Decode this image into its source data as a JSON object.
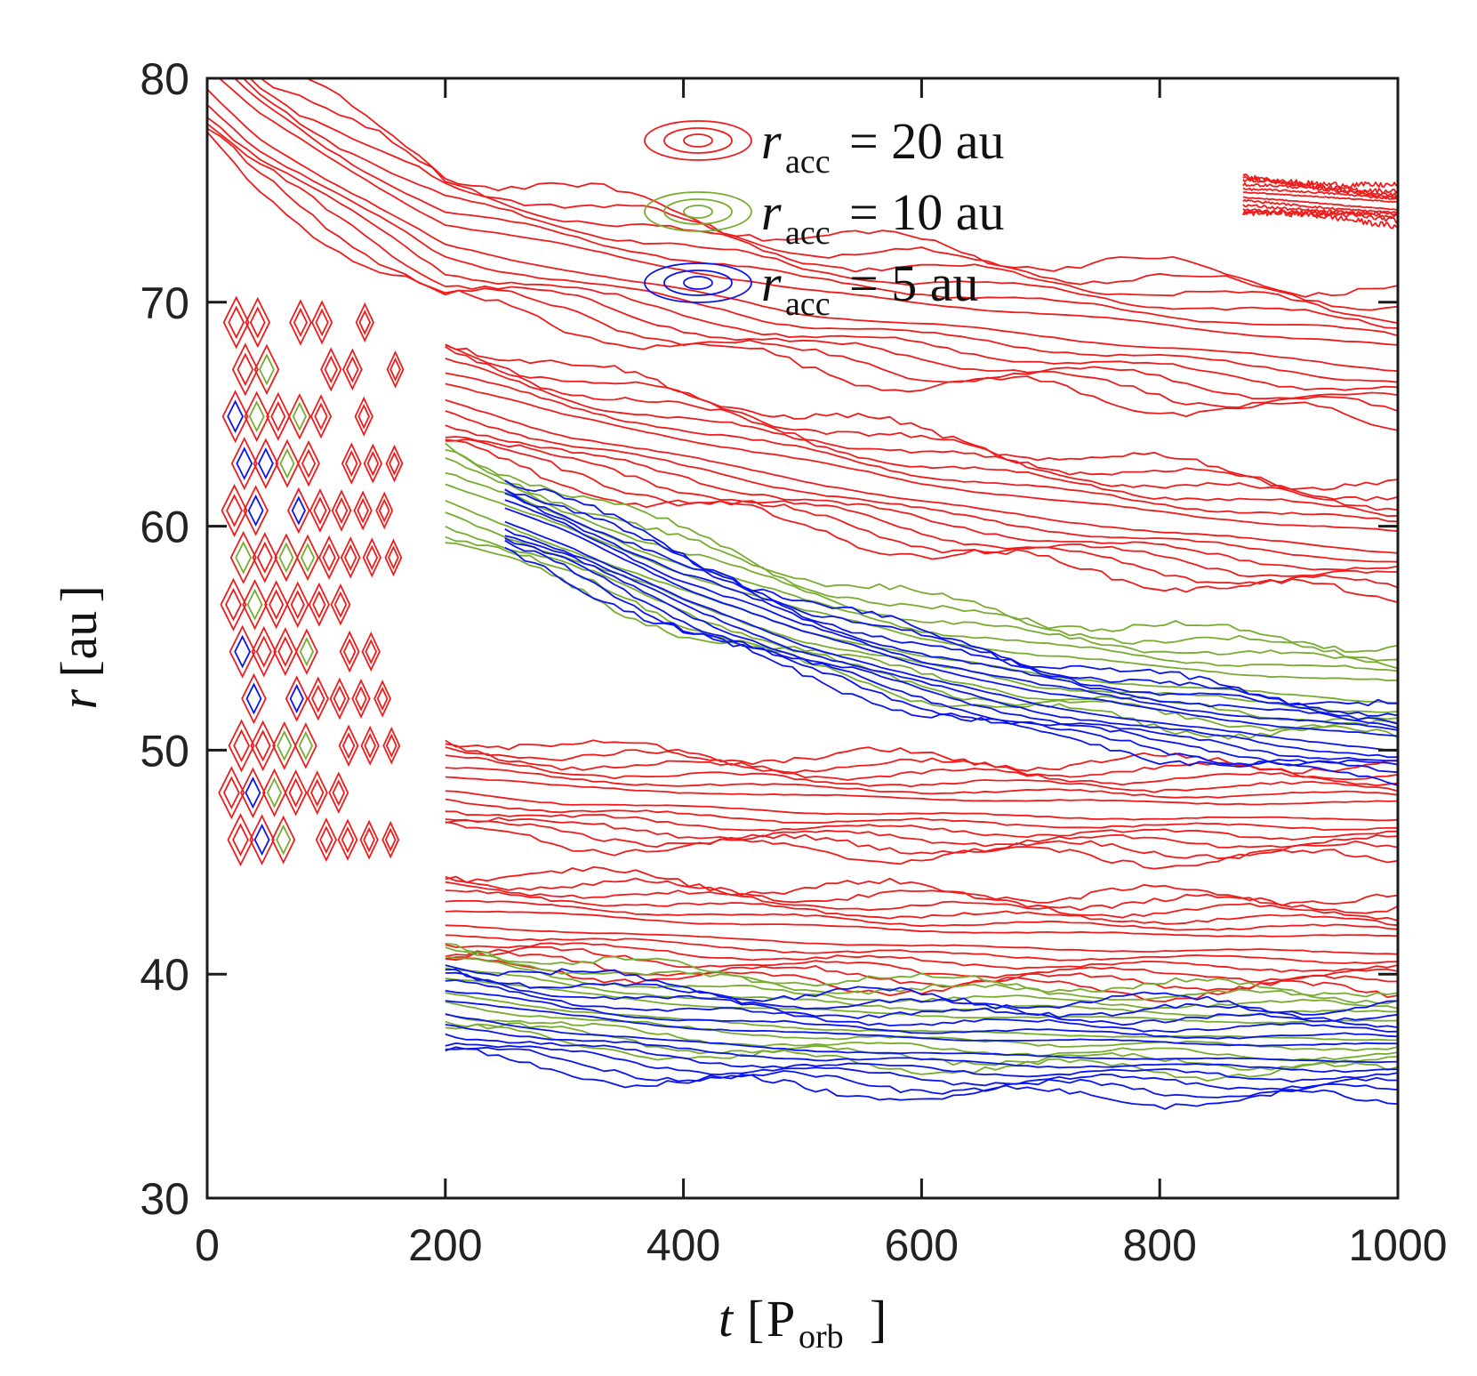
{
  "chart_data": {
    "type": "contour",
    "xlabel": {
      "var": "t",
      "unit": "P",
      "unit_sub": "orb"
    },
    "ylabel": {
      "var": "r",
      "unit": "au"
    },
    "xlim": [
      0,
      1000
    ],
    "ylim": [
      30,
      80
    ],
    "xticks": [
      0,
      200,
      400,
      600,
      800,
      1000
    ],
    "yticks": [
      30,
      40,
      50,
      60,
      70,
      80
    ],
    "xtick_labels": [
      "0",
      "200",
      "400",
      "600",
      "800",
      "1000"
    ],
    "ytick_labels": [
      "30",
      "40",
      "50",
      "60",
      "70",
      "80"
    ],
    "legend_position": "top-center",
    "series": [
      {
        "name": "r_acc = 20 au",
        "legend": {
          "var": "r",
          "sub": "acc",
          "rhs": "= 20 au"
        },
        "color": "#ee1c1c",
        "ridges": [
          {
            "t": [
              0,
              40,
              100,
              200,
              300,
              400,
              500,
              600,
              700,
              800,
              900,
              1000
            ],
            "r": [
              80,
              78,
              76,
              73,
              72,
              71,
              70,
              69.5,
              69,
              68.5,
              68,
              67.5
            ],
            "visible_range": [
              80,
              200
            ]
          },
          {
            "t": [
              200,
              300,
              400,
              500,
              600,
              700,
              800,
              900,
              1000
            ],
            "r": [
              66,
              64.5,
              63.5,
              62.5,
              61.5,
              60.8,
              60.2,
              59.7,
              59.3
            ]
          },
          {
            "t": [
              200,
              300,
              400,
              500,
              600,
              700,
              800,
              900,
              1000
            ],
            "r": [
              48.5,
              48,
              47.8,
              47.6,
              47.5,
              47.4,
              47.3,
              47.3,
              47.3
            ]
          },
          {
            "t": [
              200,
              300,
              400,
              500,
              600,
              700,
              800,
              900,
              1000
            ],
            "r": [
              42.5,
              42.3,
              42,
              41.8,
              41.6,
              41.5,
              41.4,
              41.4,
              41.3
            ]
          },
          {
            "t": [
              870,
              900,
              950,
              1000
            ],
            "r": [
              74.8,
              74.7,
              74.5,
              74.3
            ]
          }
        ],
        "band_width": [
          3.5,
          3.0,
          2.5,
          2.5,
          1.0
        ],
        "level_count": 6
      },
      {
        "name": "r_acc = 10 au",
        "legend": {
          "var": "r",
          "sub": "acc",
          "rhs": "= 10 au"
        },
        "color": "#77ac30",
        "ridges": [
          {
            "t": [
              200,
              300,
              400,
              500,
              600,
              700,
              800,
              900,
              1000
            ],
            "r": [
              61.5,
              59.5,
              57.5,
              55.8,
              54.6,
              53.8,
              53.3,
              52.9,
              52.6
            ]
          },
          {
            "t": [
              200,
              300,
              400,
              500,
              600,
              700,
              800,
              900,
              1000
            ],
            "r": [
              39.5,
              38.8,
              38.3,
              38,
              37.8,
              37.7,
              37.6,
              37.5,
              37.5
            ]
          }
        ],
        "band_width": [
          2.5,
          2.2
        ],
        "level_count": 5
      },
      {
        "name": "r_acc = 5 au",
        "legend": {
          "var": "r",
          "sub": "acc",
          "rhs": "= 5 au"
        },
        "color": "#0a14ee",
        "ridges": [
          {
            "t": [
              250,
              300,
              400,
              500,
              600,
              700,
              800,
              900,
              1000
            ],
            "r": [
              60.5,
              59.5,
              57,
              55,
              53.5,
              52.3,
              51.5,
              50.8,
              50.3
            ]
          },
          {
            "t": [
              200,
              300,
              400,
              500,
              600,
              700,
              800,
              900,
              1000
            ],
            "r": [
              38.5,
              37.8,
              37.3,
              37,
              36.8,
              36.7,
              36.6,
              36.5,
              36.5
            ]
          }
        ],
        "band_width": [
          2.0,
          2.5
        ],
        "level_count": 6
      }
    ],
    "oscillation_region": {
      "t_range": [
        0,
        160
      ],
      "r_range": [
        44,
        70
      ],
      "note": "early-time ripples of closed contours"
    }
  }
}
